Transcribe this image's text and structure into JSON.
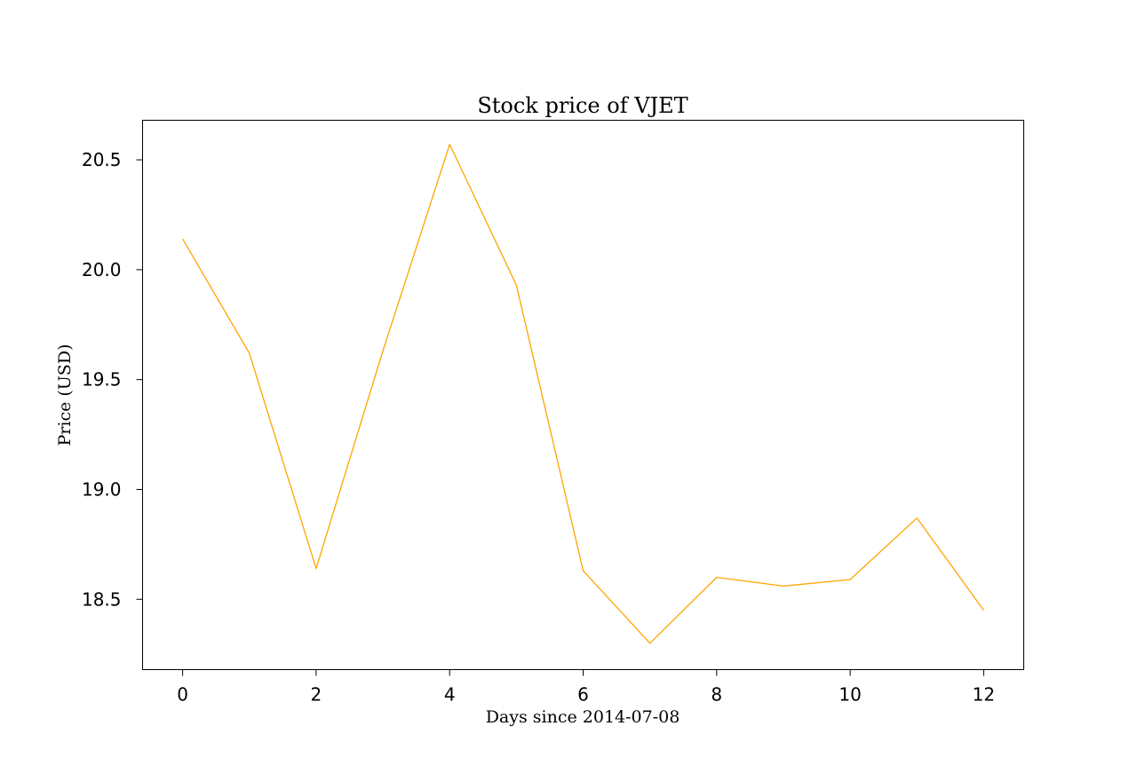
{
  "chart_data": {
    "type": "line",
    "title": "Stock price of VJET",
    "xlabel": "Days since 2014-07-08",
    "ylabel": "Price (USD)",
    "xlim": [
      -0.6,
      12.6
    ],
    "ylim": [
      18.18,
      20.68
    ],
    "xticks": [
      0,
      2,
      4,
      6,
      8,
      10,
      12
    ],
    "xtick_labels": [
      "0",
      "2",
      "4",
      "6",
      "8",
      "10",
      "12"
    ],
    "yticks": [
      18.5,
      19.0,
      19.5,
      20.0,
      20.5
    ],
    "ytick_labels": [
      "18.5",
      "19.0",
      "19.5",
      "20.0",
      "20.5"
    ],
    "grid": false,
    "series": [
      {
        "color": "#ffa500",
        "x": [
          0,
          1,
          2,
          3,
          4,
          5,
          6,
          7,
          8,
          9,
          10,
          11,
          12
        ],
        "y": [
          20.14,
          19.62,
          18.64,
          19.63,
          20.57,
          19.93,
          18.63,
          18.3,
          18.6,
          18.56,
          18.59,
          18.87,
          18.45
        ]
      }
    ]
  }
}
